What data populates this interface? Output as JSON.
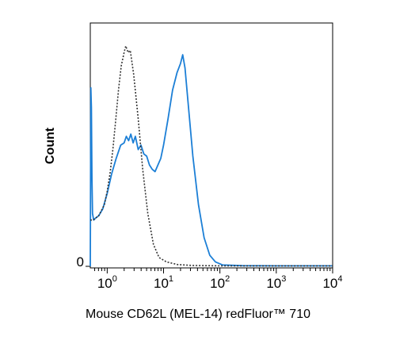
{
  "chart_data": {
    "type": "line",
    "title": "",
    "xlabel": "Mouse CD62L (MEL-14) redFluor™ 710",
    "ylabel": "Count",
    "x_scale": "log",
    "xlim": [
      -0.3,
      4
    ],
    "ylim": [
      0,
      1
    ],
    "y_ticks": [
      {
        "value": 0,
        "label": "0"
      }
    ],
    "x_ticks": [
      {
        "value": 0,
        "base": "10",
        "exp": "0"
      },
      {
        "value": 1,
        "base": "10",
        "exp": "1"
      },
      {
        "value": 2,
        "base": "10",
        "exp": "2"
      },
      {
        "value": 3,
        "base": "10",
        "exp": "3"
      },
      {
        "value": 4,
        "base": "10",
        "exp": "4"
      }
    ],
    "grid": false,
    "legend": "none",
    "series": [
      {
        "style": "solid",
        "color": "#1c7fd6",
        "points": [
          {
            "log_x": -0.3,
            "y": 0.0
          },
          {
            "log_x": -0.29,
            "y": 0.81
          },
          {
            "log_x": -0.28,
            "y": 0.72
          },
          {
            "log_x": -0.27,
            "y": 0.4
          },
          {
            "log_x": -0.26,
            "y": 0.24
          },
          {
            "log_x": -0.24,
            "y": 0.21
          },
          {
            "log_x": -0.2,
            "y": 0.22
          },
          {
            "log_x": -0.15,
            "y": 0.23
          },
          {
            "log_x": -0.08,
            "y": 0.26
          },
          {
            "log_x": 0.0,
            "y": 0.33
          },
          {
            "log_x": 0.08,
            "y": 0.42
          },
          {
            "log_x": 0.16,
            "y": 0.49
          },
          {
            "log_x": 0.24,
            "y": 0.55
          },
          {
            "log_x": 0.3,
            "y": 0.56
          },
          {
            "log_x": 0.34,
            "y": 0.59
          },
          {
            "log_x": 0.38,
            "y": 0.57
          },
          {
            "log_x": 0.42,
            "y": 0.6
          },
          {
            "log_x": 0.46,
            "y": 0.56
          },
          {
            "log_x": 0.5,
            "y": 0.59
          },
          {
            "log_x": 0.55,
            "y": 0.53
          },
          {
            "log_x": 0.6,
            "y": 0.55
          },
          {
            "log_x": 0.65,
            "y": 0.51
          },
          {
            "log_x": 0.7,
            "y": 0.5
          },
          {
            "log_x": 0.75,
            "y": 0.46
          },
          {
            "log_x": 0.8,
            "y": 0.44
          },
          {
            "log_x": 0.85,
            "y": 0.43
          },
          {
            "log_x": 0.9,
            "y": 0.46
          },
          {
            "log_x": 0.95,
            "y": 0.49
          },
          {
            "log_x": 1.0,
            "y": 0.55
          },
          {
            "log_x": 1.08,
            "y": 0.67
          },
          {
            "log_x": 1.16,
            "y": 0.8
          },
          {
            "log_x": 1.24,
            "y": 0.88
          },
          {
            "log_x": 1.3,
            "y": 0.92
          },
          {
            "log_x": 1.34,
            "y": 0.96
          },
          {
            "log_x": 1.38,
            "y": 0.9
          },
          {
            "log_x": 1.44,
            "y": 0.73
          },
          {
            "log_x": 1.52,
            "y": 0.5
          },
          {
            "log_x": 1.62,
            "y": 0.28
          },
          {
            "log_x": 1.72,
            "y": 0.13
          },
          {
            "log_x": 1.82,
            "y": 0.05
          },
          {
            "log_x": 1.92,
            "y": 0.02
          },
          {
            "log_x": 2.05,
            "y": 0.006
          },
          {
            "log_x": 2.4,
            "y": 0.003
          },
          {
            "log_x": 3.0,
            "y": 0.002
          },
          {
            "log_x": 4.0,
            "y": 0.002
          }
        ]
      },
      {
        "style": "dotted",
        "color": "#333333",
        "points": [
          {
            "log_x": -0.3,
            "y": 0.21
          },
          {
            "log_x": -0.25,
            "y": 0.21
          },
          {
            "log_x": -0.15,
            "y": 0.23
          },
          {
            "log_x": -0.05,
            "y": 0.28
          },
          {
            "log_x": 0.0,
            "y": 0.34
          },
          {
            "log_x": 0.05,
            "y": 0.42
          },
          {
            "log_x": 0.1,
            "y": 0.53
          },
          {
            "log_x": 0.15,
            "y": 0.66
          },
          {
            "log_x": 0.2,
            "y": 0.8
          },
          {
            "log_x": 0.25,
            "y": 0.91
          },
          {
            "log_x": 0.3,
            "y": 0.97
          },
          {
            "log_x": 0.33,
            "y": 1.0
          },
          {
            "log_x": 0.37,
            "y": 0.97
          },
          {
            "log_x": 0.41,
            "y": 0.98
          },
          {
            "log_x": 0.47,
            "y": 0.87
          },
          {
            "log_x": 0.55,
            "y": 0.67
          },
          {
            "log_x": 0.63,
            "y": 0.44
          },
          {
            "log_x": 0.72,
            "y": 0.24
          },
          {
            "log_x": 0.82,
            "y": 0.1
          },
          {
            "log_x": 0.92,
            "y": 0.04
          },
          {
            "log_x": 1.05,
            "y": 0.02
          },
          {
            "log_x": 1.25,
            "y": 0.008
          },
          {
            "log_x": 1.5,
            "y": 0.004
          },
          {
            "log_x": 2.0,
            "y": 0.002
          },
          {
            "log_x": 4.0,
            "y": 0.002
          }
        ]
      }
    ]
  }
}
